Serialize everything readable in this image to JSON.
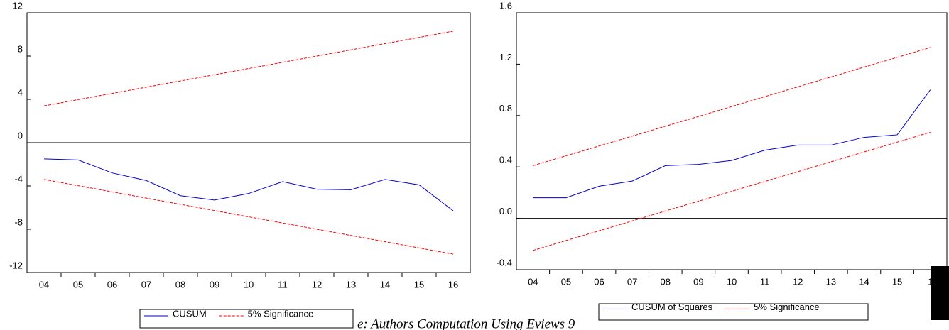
{
  "chart_data": [
    {
      "type": "line",
      "categories": [
        "04",
        "05",
        "06",
        "07",
        "08",
        "09",
        "10",
        "11",
        "12",
        "13",
        "14",
        "15",
        "16"
      ],
      "series": [
        {
          "name": "CUSUM",
          "color": "#0000cc",
          "dash": "solid",
          "values": [
            -1.5,
            -1.6,
            -2.8,
            -3.5,
            -4.9,
            -5.3,
            -4.7,
            -3.6,
            -4.3,
            -4.35,
            -3.4,
            -3.9,
            -6.3
          ]
        },
        {
          "name": "5% Significance",
          "color": "#ff0000",
          "dash": "dashed",
          "values": [
            3.4,
            3.975,
            4.55,
            5.125,
            5.7,
            6.275,
            6.85,
            7.425,
            8.0,
            8.575,
            9.15,
            9.725,
            10.3
          ]
        },
        {
          "color": "#ff0000",
          "dash": "dashed",
          "values": [
            -3.4,
            -3.975,
            -4.55,
            -5.125,
            -5.7,
            -6.275,
            -6.85,
            -7.425,
            -8.0,
            -8.575,
            -9.15,
            -9.725,
            -10.3
          ]
        }
      ],
      "ylim": [
        -12,
        12
      ],
      "yticks": [
        -12,
        -8,
        -4,
        0,
        4,
        8,
        12
      ],
      "reference_line": 0,
      "legend": "bottom"
    },
    {
      "type": "line",
      "categories": [
        "04",
        "05",
        "06",
        "07",
        "08",
        "09",
        "10",
        "11",
        "12",
        "13",
        "14",
        "15",
        "1"
      ],
      "series": [
        {
          "name": "CUSUM of Squares",
          "color": "#0000cc",
          "dash": "solid",
          "values": [
            0.16,
            0.16,
            0.25,
            0.29,
            0.41,
            0.42,
            0.45,
            0.53,
            0.57,
            0.57,
            0.63,
            0.65,
            1.0
          ]
        },
        {
          "name": "5% Significance",
          "color": "#ff0000",
          "dash": "dashed",
          "values": [
            0.41,
            0.487,
            0.563,
            0.64,
            0.717,
            0.793,
            0.87,
            0.947,
            1.023,
            1.1,
            1.177,
            1.253,
            1.33
          ]
        },
        {
          "color": "#ff0000",
          "dash": "dashed",
          "values": [
            -0.25,
            -0.173,
            -0.097,
            -0.02,
            0.057,
            0.133,
            0.21,
            0.287,
            0.363,
            0.44,
            0.517,
            0.593,
            0.67
          ]
        }
      ],
      "ylim": [
        -0.4,
        1.6
      ],
      "yticks": [
        -0.4,
        {
          "value": 0,
          "label": "0.0"
        },
        0.4,
        0.8,
        1.2,
        1.6
      ],
      "reference_line": 0,
      "legend": "bottom"
    }
  ],
  "caption": "e: Authors Computation Using Eviews 9"
}
